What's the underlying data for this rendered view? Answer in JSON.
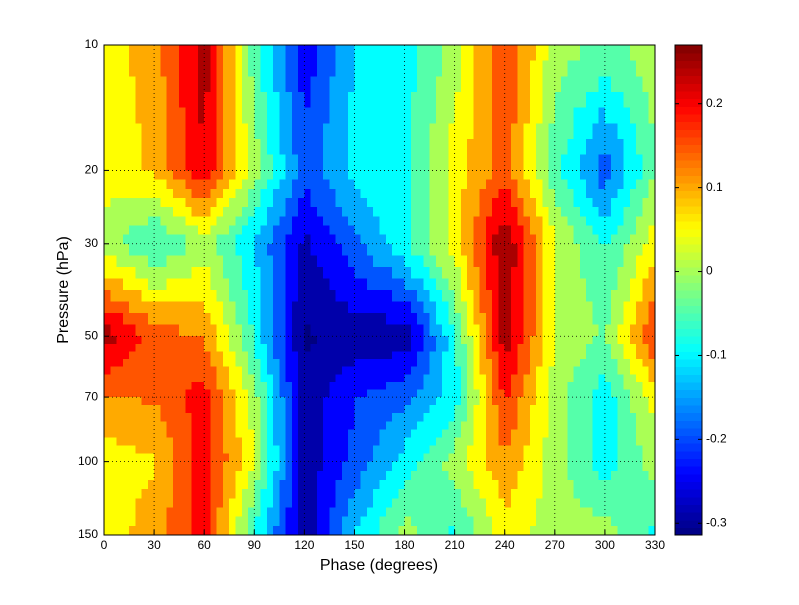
{
  "chart_data": {
    "type": "contour",
    "xlabel": "Phase (degrees)",
    "ylabel": "Pressure (hPa)",
    "x": [
      0,
      30,
      60,
      90,
      120,
      150,
      180,
      210,
      240,
      270,
      300,
      330
    ],
    "y": [
      10,
      20,
      30,
      50,
      70,
      100,
      150
    ],
    "z": [
      [
        0.05,
        0.1,
        0.25,
        -0.05,
        -0.25,
        -0.12,
        -0.1,
        0.0,
        0.18,
        0.0,
        -0.03,
        0.0
      ],
      [
        0.05,
        0.08,
        0.22,
        0.0,
        -0.2,
        -0.1,
        -0.08,
        0.05,
        0.15,
        -0.05,
        -0.2,
        -0.02
      ],
      [
        0.0,
        -0.08,
        0.0,
        -0.12,
        -0.28,
        -0.18,
        -0.08,
        0.05,
        0.27,
        0.03,
        -0.08,
        0.05
      ],
      [
        0.25,
        0.15,
        0.12,
        -0.08,
        -0.32,
        -0.3,
        -0.3,
        -0.08,
        0.25,
        0.03,
        -0.03,
        0.18
      ],
      [
        0.12,
        0.13,
        0.2,
        0.0,
        -0.3,
        -0.22,
        -0.18,
        -0.1,
        0.18,
        0.0,
        -0.1,
        0.05
      ],
      [
        0.05,
        0.07,
        0.2,
        0.03,
        -0.3,
        -0.2,
        -0.1,
        0.0,
        0.12,
        0.0,
        -0.1,
        0.0
      ],
      [
        0.05,
        0.1,
        0.2,
        -0.08,
        -0.3,
        -0.12,
        0.0,
        -0.08,
        0.05,
        0.0,
        0.0,
        -0.08
      ]
    ],
    "xlim": [
      0,
      330
    ],
    "xticks": [
      0,
      30,
      60,
      90,
      120,
      150,
      180,
      210,
      240,
      270,
      300,
      330
    ],
    "ylim": [
      10,
      150
    ],
    "yticks": [
      10,
      20,
      30,
      50,
      70,
      100,
      150
    ],
    "y_log": true,
    "y_reversed": true,
    "grid": true,
    "colormap": "jet",
    "clim": [
      -0.314,
      0.27
    ],
    "colorbar_ticks": [
      -0.3,
      -0.2,
      -0.1,
      0,
      0.1,
      0.2
    ]
  }
}
